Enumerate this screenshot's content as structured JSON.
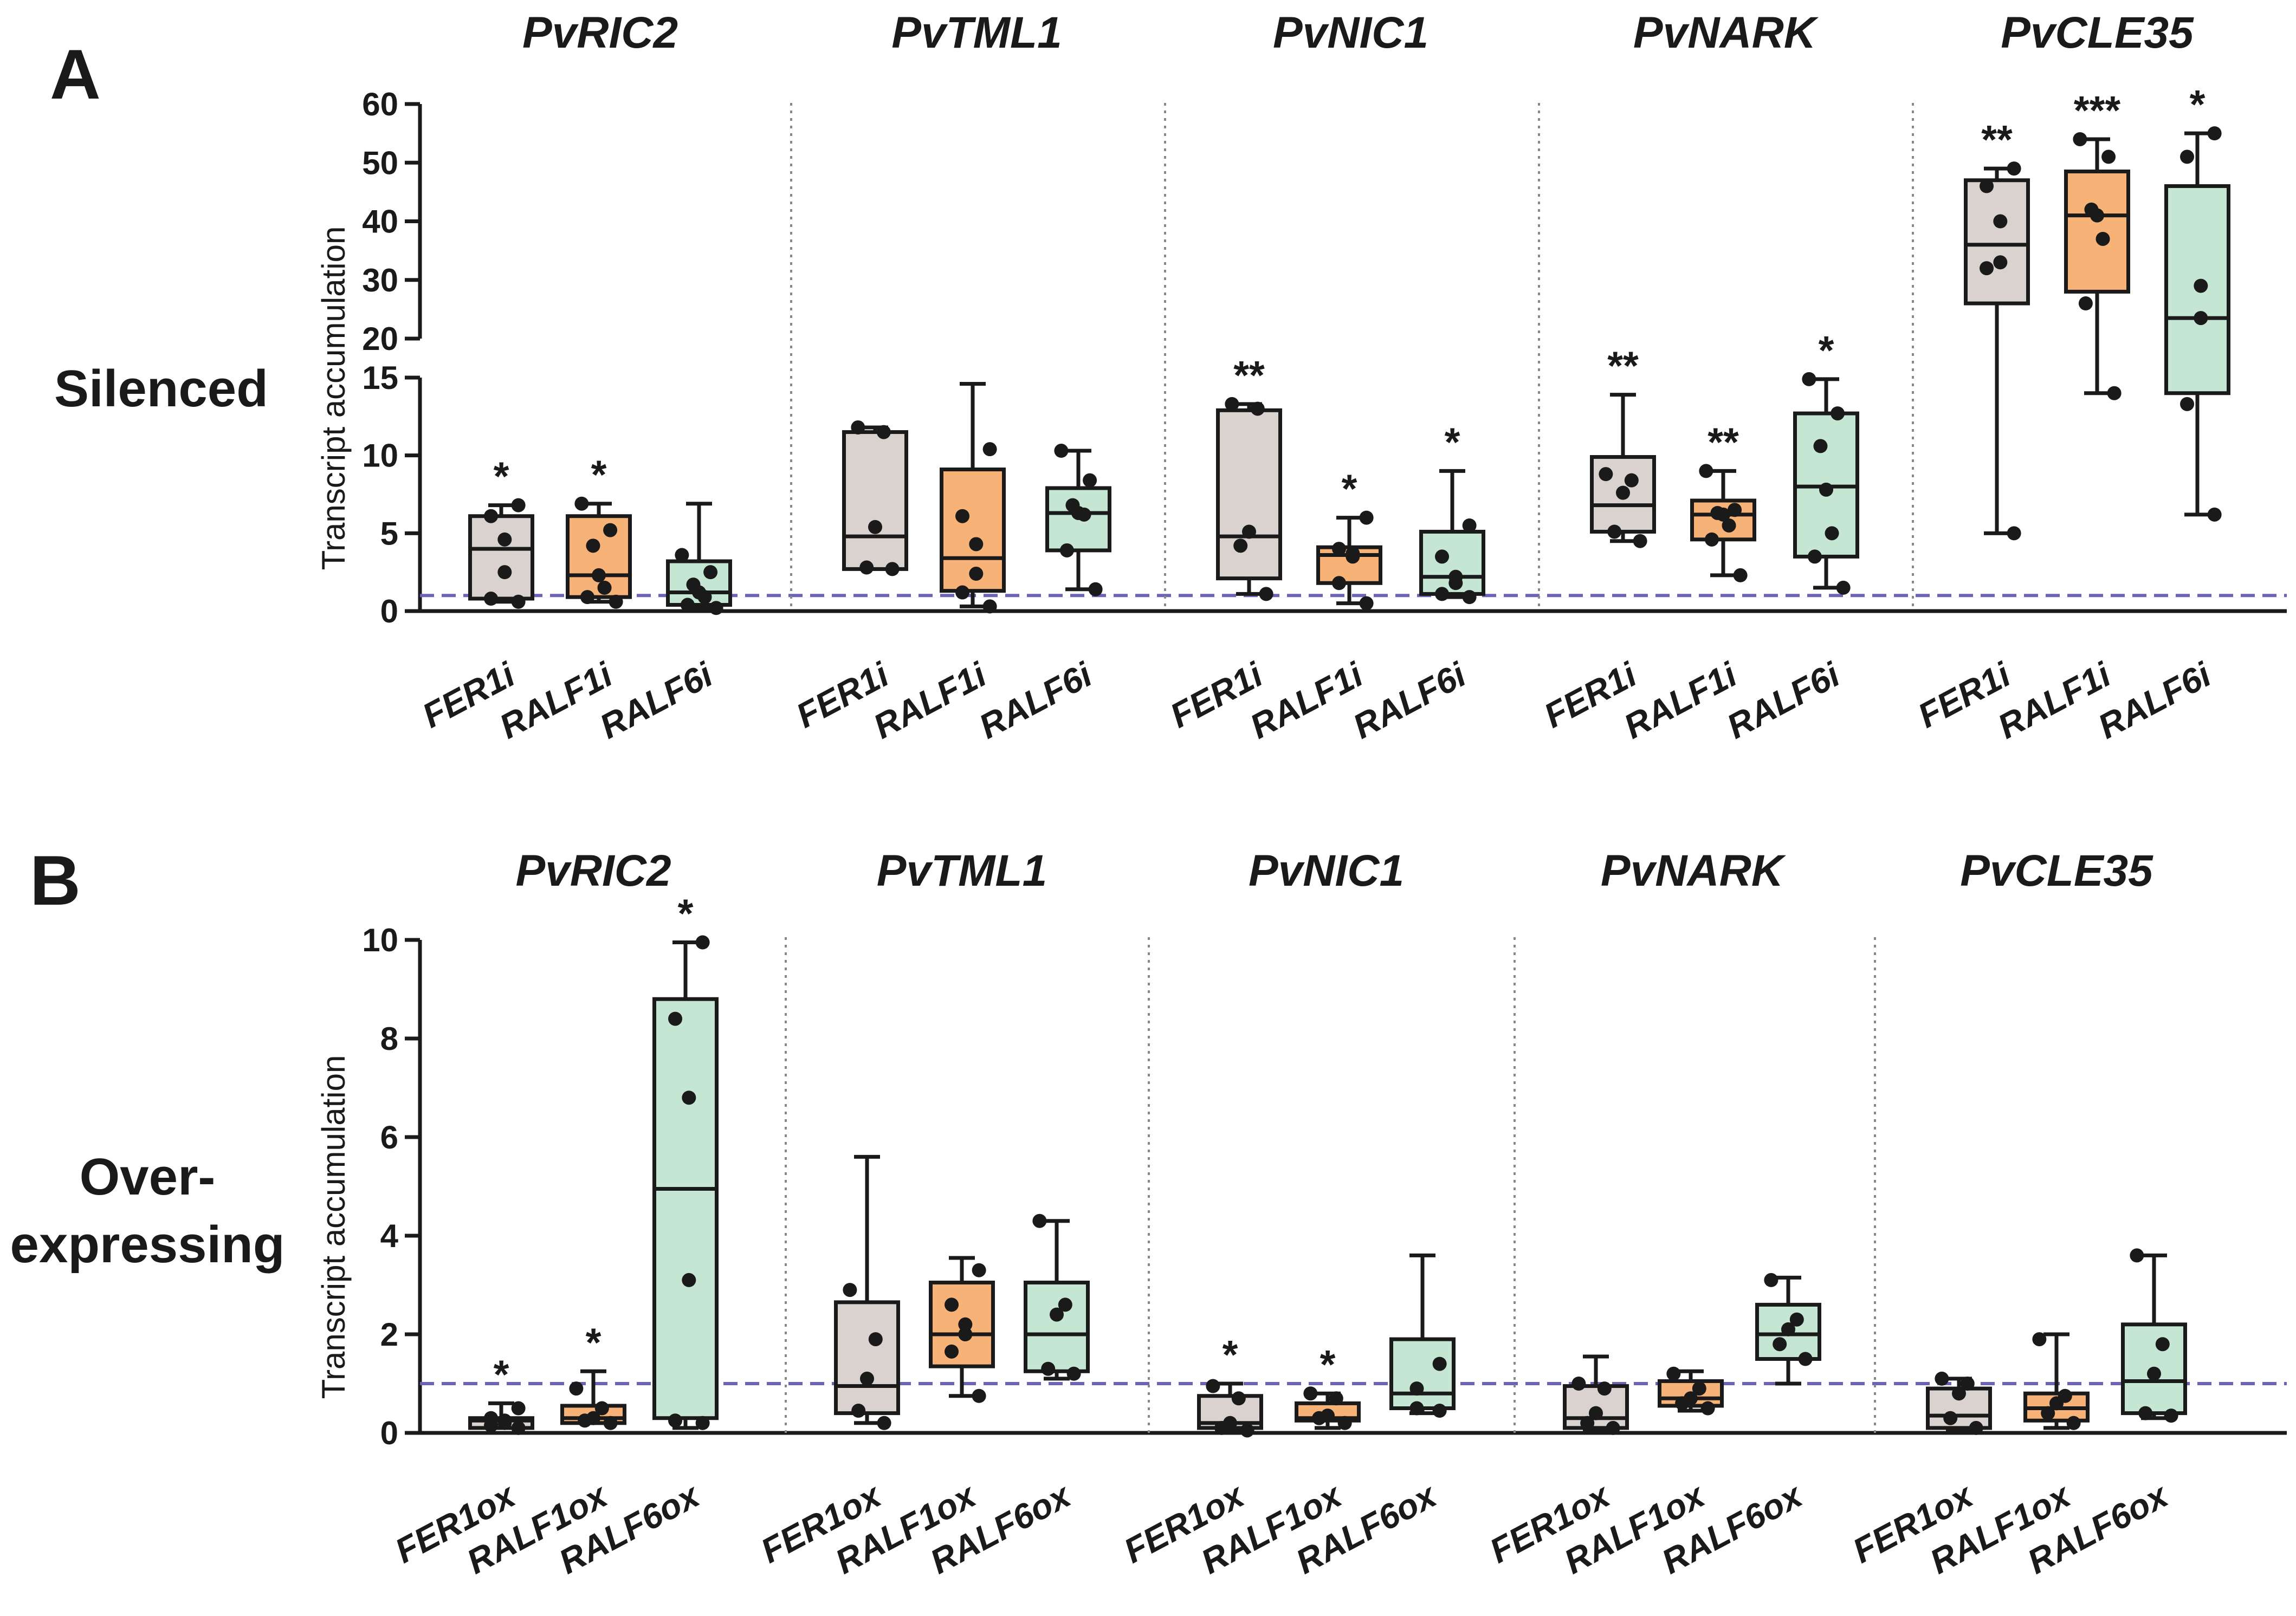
{
  "colors": {
    "fer": "#d9d2cf",
    "ralf1": "#f6b277",
    "ralf6": "#c5e6d2",
    "stroke": "#1a1a1a",
    "reference": "#6b63b5"
  },
  "panels": {
    "a": {
      "letter": "A",
      "condition": [
        "Silenced"
      ],
      "y_title": "Transcript accumulation"
    },
    "b": {
      "letter": "B",
      "condition": [
        "Over-",
        "expressing"
      ],
      "y_title": "Transcript accumulation"
    }
  },
  "chart_data": [
    {
      "type": "box",
      "panel": "A",
      "title": "Silenced",
      "ylabel": "Transcript accumulation",
      "y_segments": [
        {
          "range": [
            0,
            15
          ],
          "ticks": [
            "0",
            "5",
            "10",
            "15"
          ]
        },
        {
          "range": [
            20,
            60
          ],
          "ticks": [
            "20",
            "30",
            "40",
            "50",
            "60"
          ]
        }
      ],
      "reference_line": 1,
      "genes": [
        {
          "name": "PvRIC2",
          "groups": [
            {
              "label": "FER1i",
              "color": "fer",
              "min": 0.6,
              "q1": 0.8,
              "median": 4.0,
              "q3": 6.1,
              "max": 6.8,
              "points": [
                0.6,
                0.8,
                2.5,
                4.6,
                6.1,
                6.8
              ],
              "sig": "*"
            },
            {
              "label": "RALF1i",
              "color": "ralf1",
              "min": 0.6,
              "q1": 0.9,
              "median": 2.3,
              "q3": 6.1,
              "max": 6.9,
              "points": [
                0.6,
                0.9,
                1.5,
                2.3,
                4.2,
                5.2,
                6.9
              ],
              "sig": "*"
            },
            {
              "label": "RALF6i",
              "color": "ralf6",
              "min": 0.2,
              "q1": 0.4,
              "median": 1.2,
              "q3": 3.2,
              "max": 6.9,
              "points": [
                0.2,
                0.4,
                0.9,
                1.2,
                1.7,
                2.5,
                3.6
              ],
              "sig": ""
            }
          ]
        },
        {
          "name": "PvTML1",
          "groups": [
            {
              "label": "FER1i",
              "color": "fer",
              "min": 2.7,
              "q1": 2.7,
              "median": 4.8,
              "q3": 11.5,
              "max": 11.8,
              "points": [
                2.7,
                2.8,
                5.4,
                11.5,
                11.8
              ],
              "sig": ""
            },
            {
              "label": "RALF1i",
              "color": "ralf1",
              "min": 0.3,
              "q1": 1.3,
              "median": 3.4,
              "q3": 9.1,
              "max": 14.6,
              "points": [
                0.3,
                1.2,
                2.4,
                4.3,
                6.1,
                10.4
              ],
              "sig": ""
            },
            {
              "label": "RALF6i",
              "color": "ralf6",
              "min": 1.4,
              "q1": 3.9,
              "median": 6.3,
              "q3": 7.9,
              "max": 10.3,
              "points": [
                1.4,
                3.9,
                6.2,
                6.3,
                6.8,
                8.4,
                10.3
              ],
              "sig": ""
            }
          ]
        },
        {
          "name": "PvNIC1",
          "groups": [
            {
              "label": "FER1i",
              "color": "fer",
              "min": 1.1,
              "q1": 2.1,
              "median": 4.8,
              "q3": 12.9,
              "max": 13.3,
              "points": [
                1.1,
                4.2,
                5.1,
                13.0,
                13.3
              ],
              "sig": "**"
            },
            {
              "label": "RALF1i",
              "color": "ralf1",
              "min": 0.5,
              "q1": 1.8,
              "median": 3.6,
              "q3": 4.1,
              "max": 6.0,
              "points": [
                0.5,
                1.8,
                3.5,
                3.7,
                4.0,
                6.0
              ],
              "sig": "*"
            },
            {
              "label": "RALF6i",
              "color": "ralf6",
              "min": 0.9,
              "q1": 1.1,
              "median": 2.2,
              "q3": 5.1,
              "max": 9.0,
              "points": [
                0.9,
                1.1,
                1.8,
                2.2,
                3.5,
                5.5
              ],
              "sig": "*"
            }
          ]
        },
        {
          "name": "PvNARK",
          "groups": [
            {
              "label": "FER1i",
              "color": "fer",
              "min": 4.5,
              "q1": 5.1,
              "median": 6.8,
              "q3": 9.9,
              "max": 13.9,
              "points": [
                4.5,
                5.1,
                7.6,
                8.4,
                8.8
              ],
              "sig": "**"
            },
            {
              "label": "RALF1i",
              "color": "ralf1",
              "min": 2.3,
              "q1": 4.6,
              "median": 6.2,
              "q3": 7.1,
              "max": 9.0,
              "points": [
                2.3,
                4.6,
                5.5,
                6.2,
                6.3,
                6.5,
                9.0
              ],
              "sig": "**"
            },
            {
              "label": "RALF6i",
              "color": "ralf6",
              "min": 1.5,
              "q1": 3.5,
              "median": 8.0,
              "q3": 12.7,
              "max": 14.9,
              "points": [
                1.5,
                3.5,
                5.0,
                7.8,
                10.6,
                12.7,
                14.9
              ],
              "sig": "*"
            }
          ]
        },
        {
          "name": "PvCLE35",
          "groups": [
            {
              "label": "FER1i",
              "color": "fer",
              "min": 5.0,
              "q1": 26,
              "median": 36,
              "q3": 47,
              "max": 49,
              "points": [
                5.0,
                32,
                33,
                40,
                46,
                49
              ],
              "sig": "**"
            },
            {
              "label": "RALF1i",
              "color": "ralf1",
              "min": 14,
              "q1": 28,
              "median": 41,
              "q3": 48.5,
              "max": 54,
              "points": [
                14,
                26,
                37,
                41,
                42,
                51,
                54
              ],
              "sig": "***"
            },
            {
              "label": "RALF6i",
              "color": "ralf6",
              "min": 6.2,
              "q1": 14,
              "median": 23.5,
              "q3": 46,
              "max": 55,
              "points": [
                6.2,
                13.3,
                23.5,
                29,
                51,
                55
              ],
              "sig": "*"
            }
          ]
        }
      ]
    },
    {
      "type": "box",
      "panel": "B",
      "title": "Over-expressing",
      "ylabel": "Transcript accumulation",
      "ylim": [
        0,
        10
      ],
      "ticks": [
        "0",
        "2",
        "4",
        "6",
        "8",
        "10"
      ],
      "reference_line": 1,
      "genes": [
        {
          "name": "PvRIC2",
          "groups": [
            {
              "label": "FER1ox",
              "color": "fer",
              "min": 0.1,
              "q1": 0.1,
              "median": 0.25,
              "q3": 0.3,
              "max": 0.6,
              "points": [
                0.1,
                0.15,
                0.2,
                0.25,
                0.3,
                0.5
              ],
              "sig": "*"
            },
            {
              "label": "RALF1ox",
              "color": "ralf1",
              "min": 0.2,
              "q1": 0.2,
              "median": 0.3,
              "q3": 0.55,
              "max": 1.25,
              "points": [
                0.2,
                0.25,
                0.3,
                0.5,
                0.9
              ],
              "sig": "*"
            },
            {
              "label": "RALF6ox",
              "color": "ralf6",
              "min": 0.1,
              "q1": 0.3,
              "median": 4.95,
              "q3": 8.8,
              "max": 9.95,
              "points": [
                0.2,
                0.25,
                3.1,
                6.8,
                8.4,
                9.95
              ],
              "sig": "*"
            }
          ]
        },
        {
          "name": "PvTML1",
          "groups": [
            {
              "label": "FER1ox",
              "color": "fer",
              "min": 0.2,
              "q1": 0.4,
              "median": 0.95,
              "q3": 2.65,
              "max": 5.6,
              "points": [
                0.2,
                0.45,
                1.1,
                1.9,
                2.9
              ],
              "sig": ""
            },
            {
              "label": "RALF1ox",
              "color": "ralf1",
              "min": 0.75,
              "q1": 1.35,
              "median": 2.0,
              "q3": 3.05,
              "max": 3.55,
              "points": [
                0.75,
                1.65,
                2.0,
                2.2,
                2.6,
                3.3
              ],
              "sig": ""
            },
            {
              "label": "RALF6ox",
              "color": "ralf6",
              "min": 1.1,
              "q1": 1.25,
              "median": 2.0,
              "q3": 3.05,
              "max": 4.3,
              "points": [
                1.2,
                1.3,
                2.4,
                2.6,
                4.3
              ],
              "sig": ""
            }
          ]
        },
        {
          "name": "PvNIC1",
          "groups": [
            {
              "label": "FER1ox",
              "color": "fer",
              "min": 0.05,
              "q1": 0.1,
              "median": 0.2,
              "q3": 0.75,
              "max": 1.0,
              "points": [
                0.05,
                0.1,
                0.2,
                0.7,
                0.95
              ],
              "sig": "*"
            },
            {
              "label": "RALF1ox",
              "color": "ralf1",
              "min": 0.1,
              "q1": 0.25,
              "median": 0.3,
              "q3": 0.6,
              "max": 0.8,
              "points": [
                0.2,
                0.3,
                0.35,
                0.7,
                0.8
              ],
              "sig": "*"
            },
            {
              "label": "RALF6ox",
              "color": "ralf6",
              "min": 0.4,
              "q1": 0.5,
              "median": 0.8,
              "q3": 1.9,
              "max": 3.6,
              "points": [
                0.45,
                0.5,
                0.9,
                1.4
              ],
              "sig": ""
            }
          ]
        },
        {
          "name": "PvNARK",
          "groups": [
            {
              "label": "FER1ox",
              "color": "fer",
              "min": 0.05,
              "q1": 0.1,
              "median": 0.3,
              "q3": 0.95,
              "max": 1.55,
              "points": [
                0.1,
                0.2,
                0.4,
                0.9,
                1.0
              ],
              "sig": ""
            },
            {
              "label": "RALF1ox",
              "color": "ralf1",
              "min": 0.45,
              "q1": 0.55,
              "median": 0.7,
              "q3": 1.05,
              "max": 1.25,
              "points": [
                0.5,
                0.6,
                0.7,
                0.9,
                1.2
              ],
              "sig": ""
            },
            {
              "label": "RALF6ox",
              "color": "ralf6",
              "min": 1.0,
              "q1": 1.5,
              "median": 2.0,
              "q3": 2.6,
              "max": 3.15,
              "points": [
                1.5,
                1.8,
                2.1,
                2.3,
                3.1
              ],
              "sig": ""
            }
          ]
        },
        {
          "name": "PvCLE35",
          "groups": [
            {
              "label": "FER1ox",
              "color": "fer",
              "min": 0.05,
              "q1": 0.1,
              "median": 0.35,
              "q3": 0.9,
              "max": 1.1,
              "points": [
                0.1,
                0.3,
                0.8,
                1.0,
                1.1
              ],
              "sig": ""
            },
            {
              "label": "RALF1ox",
              "color": "ralf1",
              "min": 0.1,
              "q1": 0.25,
              "median": 0.5,
              "q3": 0.8,
              "max": 2.0,
              "points": [
                0.2,
                0.4,
                0.6,
                0.75,
                1.9
              ],
              "sig": ""
            },
            {
              "label": "RALF6ox",
              "color": "ralf6",
              "min": 0.3,
              "q1": 0.4,
              "median": 1.05,
              "q3": 2.2,
              "max": 3.6,
              "points": [
                0.35,
                0.4,
                1.2,
                1.8,
                3.6
              ],
              "sig": ""
            }
          ]
        }
      ]
    }
  ]
}
